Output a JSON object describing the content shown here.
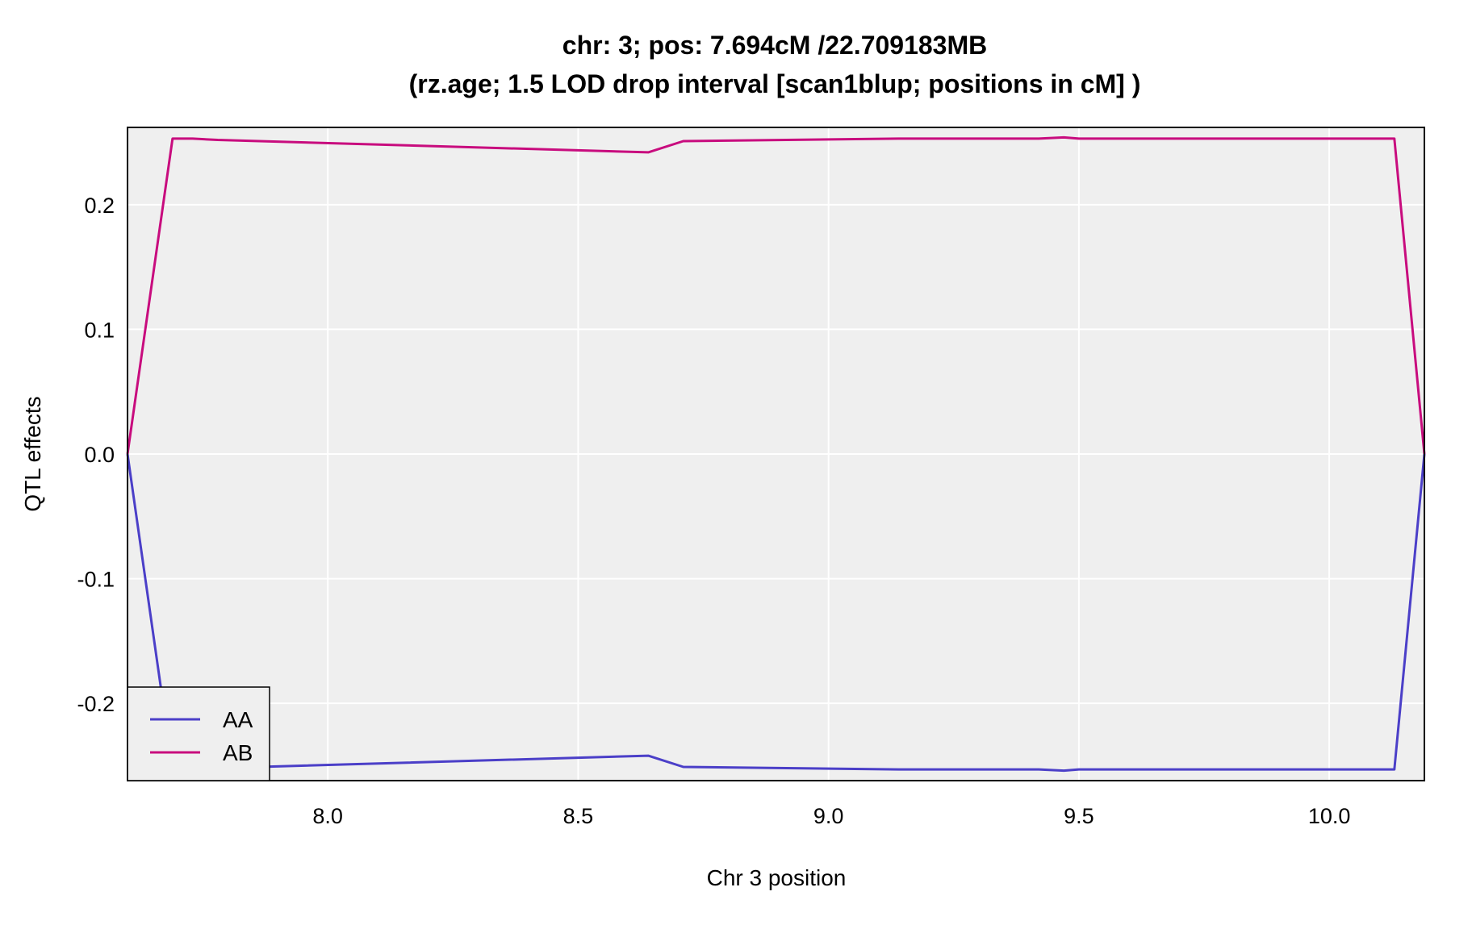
{
  "chart_data": {
    "type": "line",
    "title": "chr: 3; pos: 7.694cM /22.709183MB",
    "subtitle": "(rz.age; 1.5 LOD drop interval [scan1blup; positions in cM] )",
    "xlabel": "Chr 3 position",
    "ylabel": "QTL effects",
    "xlim": [
      7.6,
      10.19
    ],
    "ylim": [
      -0.262,
      0.262
    ],
    "xticks": [
      8.0,
      8.5,
      9.0,
      9.5,
      10.0
    ],
    "xtick_labels": [
      "8.0",
      "8.5",
      "9.0",
      "9.5",
      "10.0"
    ],
    "yticks": [
      -0.2,
      -0.1,
      0.0,
      0.1,
      0.2
    ],
    "ytick_labels": [
      "-0.2",
      "-0.1",
      "0.0",
      "0.1",
      "0.2"
    ],
    "grid": true,
    "legend_position": "bottom-left",
    "series": [
      {
        "name": "AA",
        "color": "#4b3fc8",
        "x": [
          7.6,
          7.69,
          7.73,
          7.78,
          8.64,
          8.71,
          9.14,
          9.42,
          9.47,
          9.5,
          10.13,
          10.19
        ],
        "y": [
          0.0,
          -0.253,
          -0.253,
          -0.252,
          -0.242,
          -0.251,
          -0.253,
          -0.253,
          -0.254,
          -0.253,
          -0.253,
          0.0
        ]
      },
      {
        "name": "AB",
        "color": "#c80c7e",
        "x": [
          7.6,
          7.69,
          7.73,
          7.78,
          8.64,
          8.71,
          9.14,
          9.42,
          9.47,
          9.5,
          10.13,
          10.19
        ],
        "y": [
          0.0,
          0.253,
          0.253,
          0.252,
          0.242,
          0.251,
          0.253,
          0.253,
          0.254,
          0.253,
          0.253,
          0.0
        ]
      }
    ]
  }
}
